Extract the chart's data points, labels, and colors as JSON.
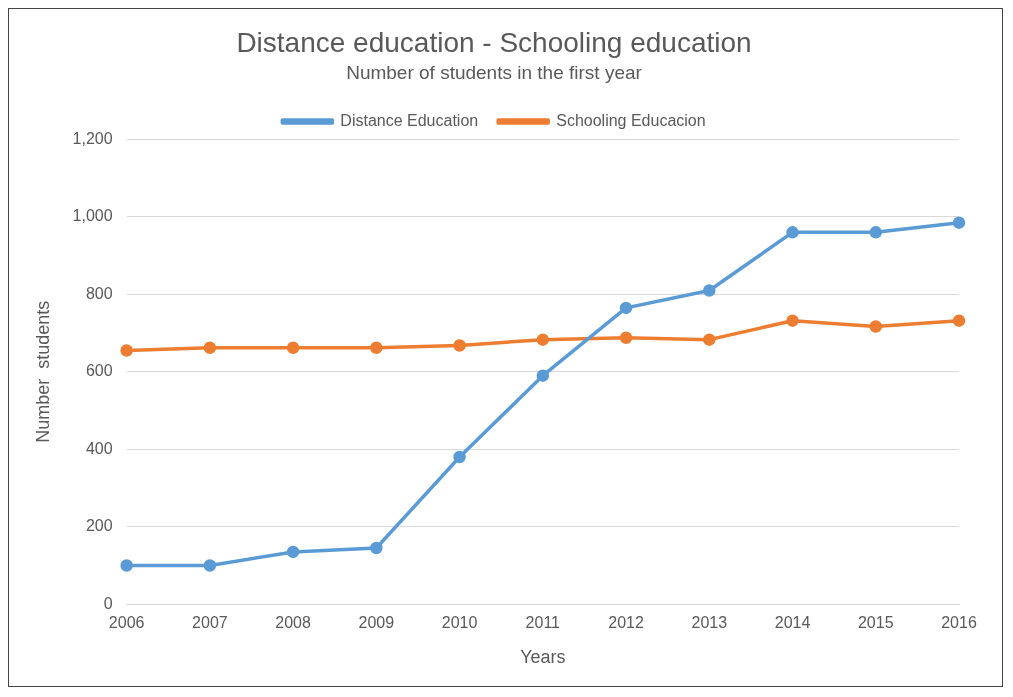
{
  "chart_data": {
    "type": "line",
    "title": "Distance education - Schooling education",
    "subtitle": "Number of students in the first year",
    "xlabel": "Years",
    "ylabel": "Number  students",
    "categories": [
      "2006",
      "2007",
      "2008",
      "2009",
      "2010",
      "2011",
      "2012",
      "2013",
      "2014",
      "2015",
      "2016"
    ],
    "series": [
      {
        "name": "Distance Education",
        "color": "#5b9bd5",
        "values": [
          100,
          100,
          135,
          145,
          380,
          590,
          765,
          810,
          960,
          960,
          985
        ]
      },
      {
        "name": "Schooling Educacion",
        "color": "#ed7d31",
        "values": [
          655,
          662,
          662,
          662,
          668,
          683,
          688,
          683,
          732,
          717,
          732
        ]
      }
    ],
    "ylim": [
      0,
      1200
    ],
    "yticks": [
      {
        "value": 0,
        "label": "0"
      },
      {
        "value": 200,
        "label": "200"
      },
      {
        "value": 400,
        "label": "400"
      },
      {
        "value": 600,
        "label": "600"
      },
      {
        "value": 800,
        "label": "800"
      },
      {
        "value": 1000,
        "label": "1,000"
      },
      {
        "value": 1200,
        "label": "1,200"
      }
    ],
    "grid": "y",
    "legend": "top",
    "marker": "circle",
    "line_style": "solid"
  }
}
